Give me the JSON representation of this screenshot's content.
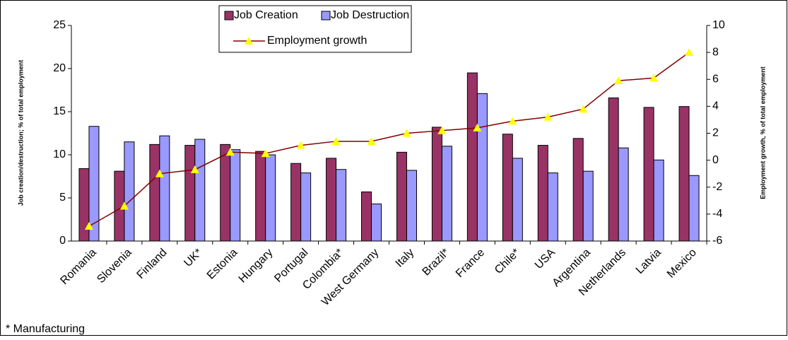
{
  "chart_data": {
    "type": "bar_line",
    "categories": [
      "Romania",
      "Slovenia",
      "Finland",
      "UK*",
      "Estonia",
      "Hungary",
      "Portugal",
      "Colombia*",
      "West Germany",
      "Italy",
      "Brazil*",
      "France",
      "Chile*",
      "USA",
      "Argentina",
      "Netherlands",
      "Latvia",
      "Mexico"
    ],
    "series": [
      {
        "name": "Job Creation",
        "type": "bar",
        "color": "#993366",
        "values": [
          8.4,
          8.1,
          11.2,
          11.1,
          11.2,
          10.4,
          9.0,
          9.6,
          5.7,
          10.3,
          13.2,
          19.5,
          12.4,
          11.1,
          11.9,
          16.6,
          15.5,
          15.6
        ]
      },
      {
        "name": "Job Destruction",
        "type": "bar",
        "color": "#9999ff",
        "values": [
          13.3,
          11.5,
          12.2,
          11.8,
          10.6,
          10.0,
          7.9,
          8.3,
          4.3,
          8.2,
          11.0,
          17.1,
          9.6,
          7.9,
          8.1,
          10.8,
          9.4,
          7.6
        ]
      },
      {
        "name": "Employment growth",
        "type": "line",
        "axis": "y2",
        "color": "#800000",
        "marker_color": "#ffff00",
        "values": [
          -4.9,
          -3.4,
          -1.0,
          -0.7,
          0.6,
          0.5,
          1.1,
          1.4,
          1.4,
          2.0,
          2.2,
          2.4,
          2.9,
          3.2,
          3.8,
          5.9,
          6.1,
          8.0
        ]
      }
    ],
    "y_label": "Job creation/destruction; % of total employment",
    "y2_label": "Employment growth, % of total employment",
    "ylim": [
      0,
      25
    ],
    "yticks": [
      0,
      5,
      10,
      15,
      20,
      25
    ],
    "y2lim": [
      -6,
      10
    ],
    "y2ticks": [
      -6,
      -4,
      -2,
      0,
      2,
      4,
      6,
      8,
      10
    ],
    "legend": "top",
    "annotation": "* Manufacturing"
  }
}
